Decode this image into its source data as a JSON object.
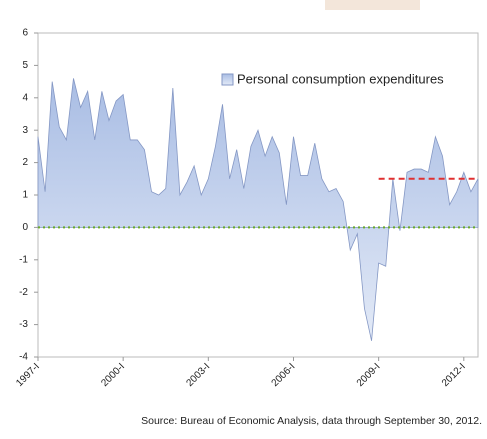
{
  "chart_data": {
    "type": "area",
    "legend": "Personal consumption expenditures",
    "legend_position": "upper right",
    "source": "Source: Bureau of Economic Analysis, data through September 30, 2012.",
    "color": "#b4c6e7",
    "edge_color": "#8497c4",
    "categories": [
      "1997-I",
      null,
      null,
      null,
      null,
      null,
      null,
      null,
      null,
      null,
      null,
      null,
      "2000-I",
      null,
      null,
      null,
      null,
      null,
      null,
      null,
      null,
      null,
      null,
      null,
      "2003-I",
      null,
      null,
      null,
      null,
      null,
      null,
      null,
      null,
      null,
      null,
      null,
      "2006-I",
      null,
      null,
      null,
      null,
      null,
      null,
      null,
      null,
      null,
      null,
      null,
      "2009-I",
      null,
      null,
      null,
      null,
      null,
      null,
      null,
      null,
      null,
      null,
      null,
      "2012-I",
      null,
      null
    ],
    "values": [
      2.8,
      1.1,
      4.5,
      3.1,
      2.7,
      4.6,
      3.7,
      4.2,
      2.7,
      4.2,
      3.3,
      3.9,
      4.1,
      2.7,
      2.7,
      2.4,
      1.1,
      1.0,
      1.2,
      4.3,
      1.0,
      1.4,
      1.9,
      1.0,
      1.5,
      2.5,
      3.8,
      1.5,
      2.4,
      1.2,
      2.5,
      3.0,
      2.2,
      2.8,
      2.3,
      0.7,
      2.8,
      1.6,
      1.6,
      2.6,
      1.5,
      1.1,
      1.2,
      0.8,
      -0.7,
      -0.2,
      -2.5,
      -3.5,
      -1.1,
      -1.2,
      1.5,
      -0.1,
      1.7,
      1.8,
      1.8,
      1.7,
      2.8,
      2.2,
      0.7,
      1.1,
      1.7,
      1.1,
      1.5
    ],
    "ylim": [
      -4,
      6
    ],
    "yticks": [
      -4,
      -3,
      -2,
      -1,
      0,
      1,
      2,
      3,
      4,
      5,
      6
    ],
    "reference_line": {
      "value": 1.5,
      "start_index": 48,
      "color": "#e03030"
    },
    "zero_line_color": "#6aaa2a"
  }
}
